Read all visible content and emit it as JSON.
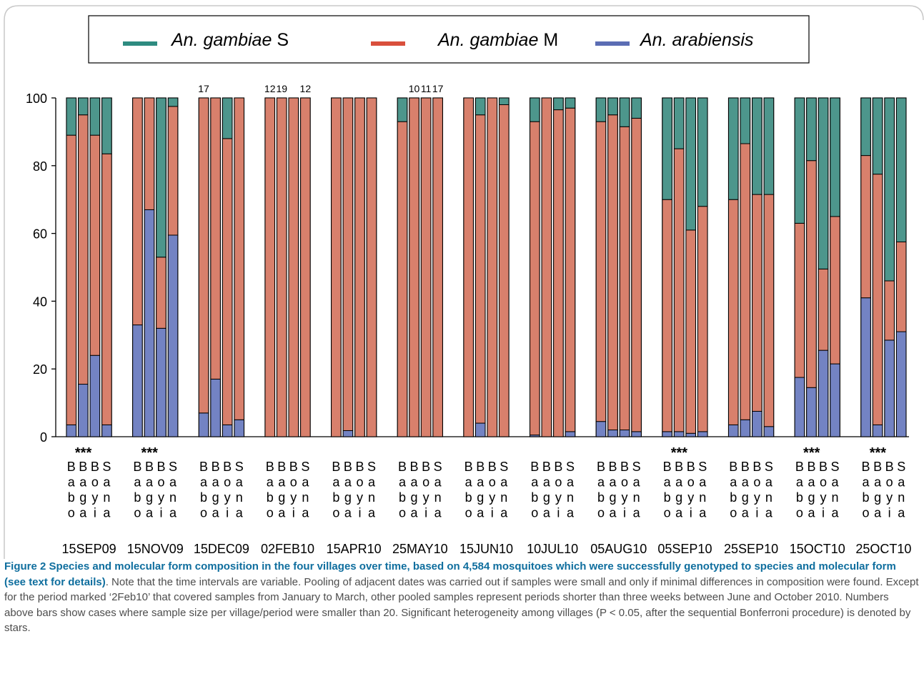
{
  "chart_data": {
    "type": "bar",
    "stacked": true,
    "ylim": [
      0,
      100
    ],
    "yticks": [
      "0",
      "20",
      "40",
      "60",
      "80",
      "100"
    ],
    "legend": {
      "placement": "top",
      "entries": [
        {
          "italic": "An. gambiae",
          "suffix": " S",
          "color": "#2e8b80"
        },
        {
          "italic": "An. gambiae",
          "suffix": " M",
          "color": "#d94f3c"
        },
        {
          "italic": "An. arabiensis",
          "suffix": "",
          "color": "#5b6db4"
        }
      ]
    },
    "village_labels": [
      [
        "B",
        "a",
        "b",
        "o"
      ],
      [
        "B",
        "a",
        "g",
        "a"
      ],
      [
        "B",
        "o",
        "y",
        "i"
      ],
      [
        "S",
        "a",
        "n",
        "a"
      ]
    ],
    "series_colors": {
      "arabiensis": "#7383c3",
      "M": "#d8806c",
      "S": "#4d968c"
    },
    "significance_mark": "***",
    "periods": [
      {
        "label": "15SEP09",
        "sig": true,
        "n_above": [],
        "arabiensis": [
          3.5,
          15.5,
          24,
          3.5
        ],
        "M": [
          85.5,
          79.5,
          65,
          80
        ],
        "S": [
          11,
          5,
          11,
          16.5
        ]
      },
      {
        "label": "15NOV09",
        "sig": true,
        "n_above": [],
        "arabiensis": [
          33,
          67,
          32,
          59.5
        ],
        "M": [
          67,
          33,
          21,
          38
        ],
        "S": [
          0,
          0,
          47,
          2.5
        ]
      },
      {
        "label": "15DEC09",
        "sig": false,
        "n_above": [
          "17",
          "",
          "",
          ""
        ],
        "arabiensis": [
          7,
          17,
          3.5,
          5
        ],
        "M": [
          93,
          83,
          84.5,
          95
        ],
        "S": [
          0,
          0,
          12,
          0
        ]
      },
      {
        "label": "02FEB10",
        "sig": false,
        "n_above": [
          "12",
          "19",
          "",
          "12"
        ],
        "arabiensis": [
          0,
          0,
          0,
          0
        ],
        "M": [
          100,
          100,
          100,
          100
        ],
        "S": [
          0,
          0,
          0,
          0
        ]
      },
      {
        "label": "15APR10",
        "sig": false,
        "n_above": [],
        "arabiensis": [
          0,
          1.8,
          0,
          0
        ],
        "M": [
          100,
          98.2,
          100,
          100
        ],
        "S": [
          0,
          0,
          0,
          0
        ]
      },
      {
        "label": "25MAY10",
        "sig": false,
        "n_above": [
          "",
          "10",
          "11",
          "17"
        ],
        "arabiensis": [
          0,
          0,
          0,
          0
        ],
        "M": [
          93,
          100,
          100,
          100
        ],
        "S": [
          7,
          0,
          0,
          0
        ]
      },
      {
        "label": "15JUN10",
        "sig": false,
        "n_above": [],
        "arabiensis": [
          0,
          4,
          0,
          0
        ],
        "M": [
          100,
          91,
          100,
          98
        ],
        "S": [
          0,
          5,
          0,
          2
        ]
      },
      {
        "label": "10JUL10",
        "sig": false,
        "n_above": [],
        "arabiensis": [
          0.5,
          0,
          0,
          1.5
        ],
        "M": [
          92.5,
          100,
          96.5,
          95.5
        ],
        "S": [
          7,
          0,
          3.5,
          3
        ]
      },
      {
        "label": "05AUG10",
        "sig": false,
        "n_above": [],
        "arabiensis": [
          4.5,
          2,
          2,
          1.5
        ],
        "M": [
          88.5,
          93,
          89.5,
          92.5
        ],
        "S": [
          7,
          5,
          8.5,
          6
        ]
      },
      {
        "label": "05SEP10",
        "sig": true,
        "n_above": [],
        "arabiensis": [
          1.5,
          1.5,
          1,
          1.5
        ],
        "M": [
          68.5,
          83.5,
          60,
          66.5
        ],
        "S": [
          30,
          15,
          39,
          32
        ]
      },
      {
        "label": "25SEP10",
        "sig": false,
        "n_above": [],
        "arabiensis": [
          3.5,
          5,
          7.5,
          3
        ],
        "M": [
          66.5,
          81.5,
          64,
          68.5
        ],
        "S": [
          30,
          13.5,
          28.5,
          28.5
        ]
      },
      {
        "label": "15OCT10",
        "sig": true,
        "n_above": [],
        "arabiensis": [
          17.5,
          14.5,
          25.5,
          21.5
        ],
        "M": [
          45.5,
          67,
          24,
          43.5
        ],
        "S": [
          37,
          18.5,
          50.5,
          35
        ]
      },
      {
        "label": "25OCT10",
        "sig": true,
        "n_above": [],
        "arabiensis": [
          41,
          3.5,
          28.5,
          31
        ],
        "M": [
          42,
          74,
          17.5,
          26.5
        ],
        "S": [
          17,
          22.5,
          54,
          42.5
        ]
      }
    ]
  },
  "caption": {
    "label": "Figure 2",
    "title": "Species and molecular form composition in the four villages over time, based on 4,584 mosquitoes which were successfully genotyped to species and molecular form (see text for details)",
    "body": ". Note that the time intervals are variable. Pooling of adjacent dates was carried out if samples were small and only if minimal differences in composition were found. Except for the period marked ‘2Feb10’ that covered samples from January to March, other pooled samples represent periods shorter than three weeks between June and October 2010. Numbers above bars show cases where sample size per village/period were smaller than 20. Significant heterogeneity among villages (P < 0.05, after the sequential Bonferroni procedure) is denoted by stars."
  }
}
